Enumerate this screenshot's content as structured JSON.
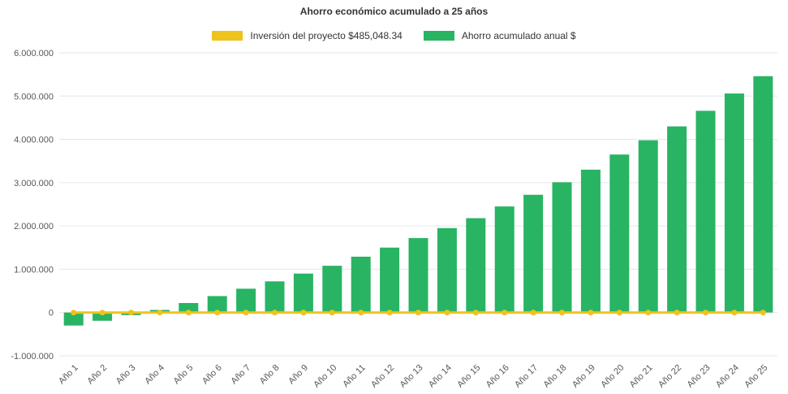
{
  "chart_data": {
    "type": "bar",
    "title": "Ahorro económico acumulado a 25 años",
    "xlabel": "",
    "ylabel": "",
    "ylim": [
      -1000000,
      6000000
    ],
    "ytick_step": 1000000,
    "grid": true,
    "legend_position": "top",
    "categories": [
      "Año 1",
      "Año 2",
      "Año 3",
      "Año 4",
      "Año 5",
      "Año 6",
      "Año 7",
      "Año 8",
      "Año 9",
      "Año 10",
      "Año 11",
      "Año 12",
      "Año 13",
      "Año 14",
      "Año 15",
      "Año 16",
      "Año 17",
      "Año 18",
      "Año 19",
      "Año 20",
      "Año 21",
      "Año 22",
      "Año 23",
      "Año 24",
      "Año 25"
    ],
    "series": [
      {
        "name": "Inversión del proyecto $485,048.34",
        "type": "line",
        "color": "#eec31e",
        "values": [
          0,
          0,
          0,
          0,
          0,
          0,
          0,
          0,
          0,
          0,
          0,
          0,
          0,
          0,
          0,
          0,
          0,
          0,
          0,
          0,
          0,
          0,
          0,
          0,
          0
        ]
      },
      {
        "name": "Ahorro acumulado anual $",
        "type": "bar",
        "color": "#28b463",
        "values": [
          -300000,
          -190000,
          -60000,
          60000,
          220000,
          380000,
          550000,
          720000,
          900000,
          1080000,
          1290000,
          1500000,
          1720000,
          1950000,
          2180000,
          2450000,
          2720000,
          3010000,
          3300000,
          3650000,
          3980000,
          4300000,
          4660000,
          5060000,
          5460000
        ]
      }
    ],
    "colors": {
      "grid": "#e6e6e6",
      "tick_label": "#58585a",
      "title": "#333333"
    }
  }
}
